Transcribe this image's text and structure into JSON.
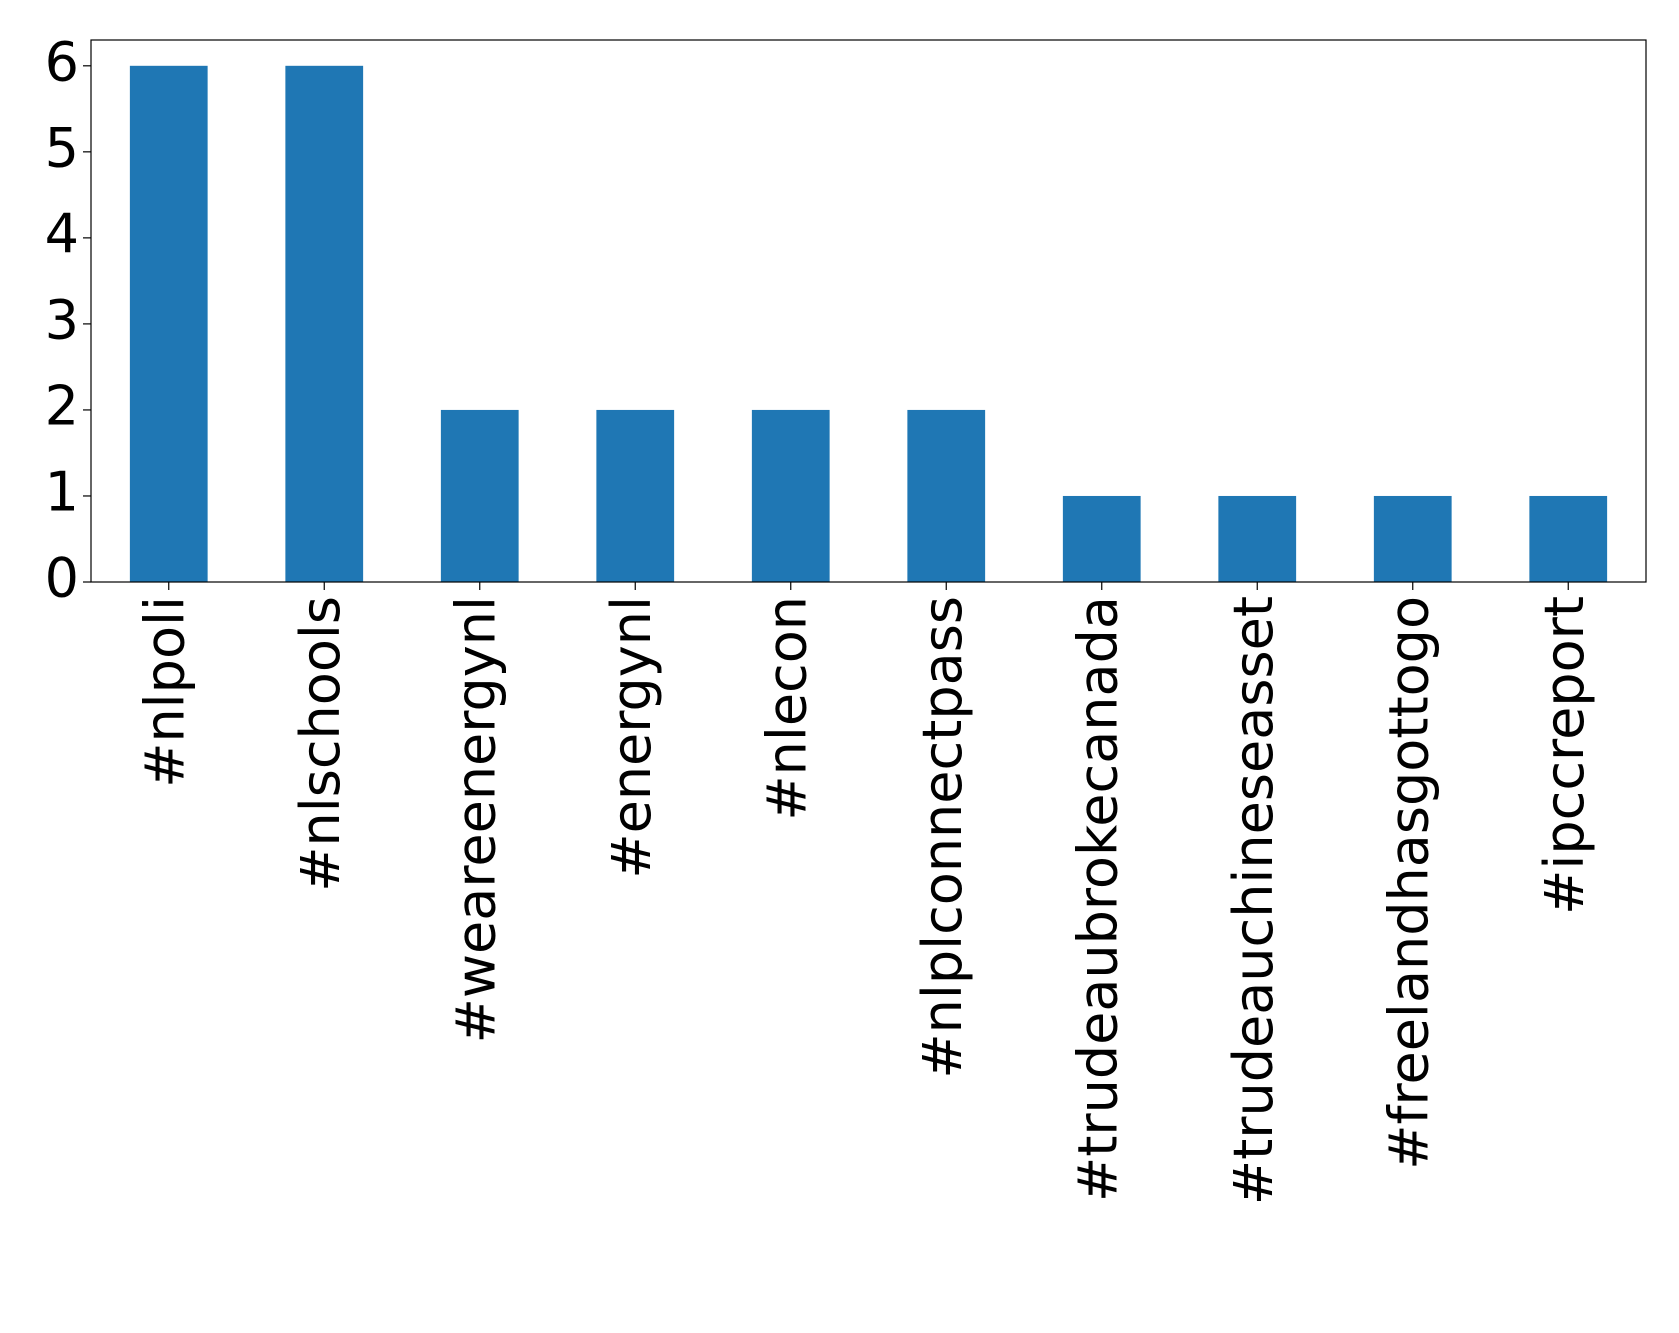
{
  "chart_data": {
    "type": "bar",
    "categories": [
      "#nlpoli",
      "#nlschools",
      "#weareenergynl",
      "#energynl",
      "#nlecon",
      "#nlplconnectpass",
      "#trudeaubrokecanada",
      "#trudeauchineseasset",
      "#freelandhasgottogo",
      "#ipccreport"
    ],
    "values": [
      6,
      6,
      2,
      2,
      2,
      2,
      1,
      1,
      1,
      1
    ],
    "color": "#1f77b4",
    "ylim": [
      0,
      6.3
    ],
    "yticks": [
      0,
      1,
      2,
      3,
      4,
      5,
      6
    ],
    "grid": false
  }
}
